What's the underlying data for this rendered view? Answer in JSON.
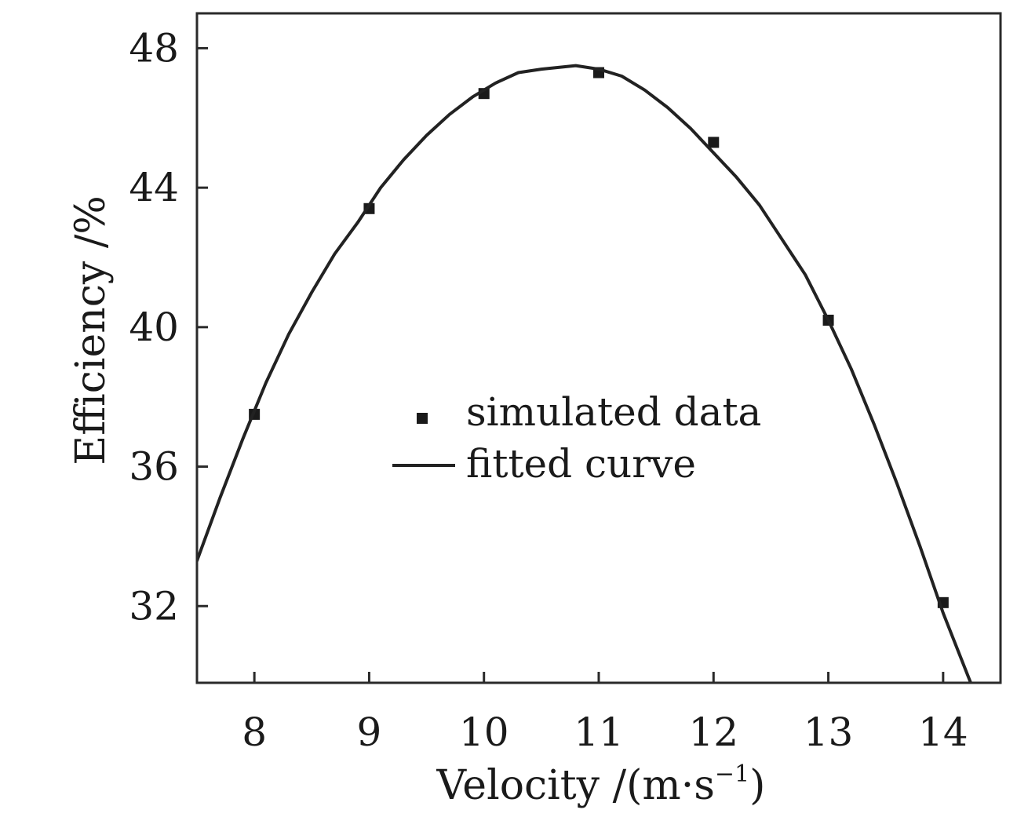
{
  "chart_data": {
    "type": "scatter",
    "xlabel": "Velocity /(m·s",
    "xlabel_superscript": "−1",
    "xlabel_close": ")",
    "ylabel": "Efficiency /%",
    "xlim": [
      7.5,
      14.5
    ],
    "ylim": [
      29.8,
      49
    ],
    "x_ticks": [
      8,
      9,
      10,
      11,
      12,
      13,
      14
    ],
    "y_ticks": [
      32,
      36,
      40,
      44,
      48
    ],
    "grid": false,
    "legend_position": "center",
    "series": [
      {
        "name": "simulated data",
        "kind": "markers",
        "marker": "square",
        "x": [
          8,
          9,
          10,
          11,
          12,
          13,
          14
        ],
        "y": [
          37.5,
          43.4,
          46.7,
          47.3,
          45.3,
          40.2,
          32.1
        ]
      },
      {
        "name": "fitted curve",
        "kind": "line",
        "x": [
          7.5,
          7.7,
          7.9,
          8.1,
          8.3,
          8.5,
          8.7,
          8.9,
          9.1,
          9.3,
          9.5,
          9.7,
          9.9,
          10.1,
          10.3,
          10.5,
          10.8,
          11.0,
          11.2,
          11.4,
          11.6,
          11.8,
          12.0,
          12.2,
          12.4,
          12.6,
          12.8,
          13.0,
          13.2,
          13.4,
          13.6,
          13.8,
          14.0,
          14.24
        ],
        "y": [
          33.3,
          35.1,
          36.8,
          38.4,
          39.8,
          41.0,
          42.1,
          43.0,
          44.0,
          44.8,
          45.5,
          46.1,
          46.6,
          47.0,
          47.3,
          47.4,
          47.5,
          47.4,
          47.2,
          46.8,
          46.3,
          45.7,
          45.0,
          44.3,
          43.5,
          42.5,
          41.5,
          40.2,
          38.8,
          37.2,
          35.5,
          33.7,
          31.8,
          29.8
        ]
      }
    ],
    "colors": {
      "axis": "#2a2a2a",
      "curve": "#222222",
      "marker": "#1a1a1a",
      "text": "#1a1a1a"
    }
  }
}
